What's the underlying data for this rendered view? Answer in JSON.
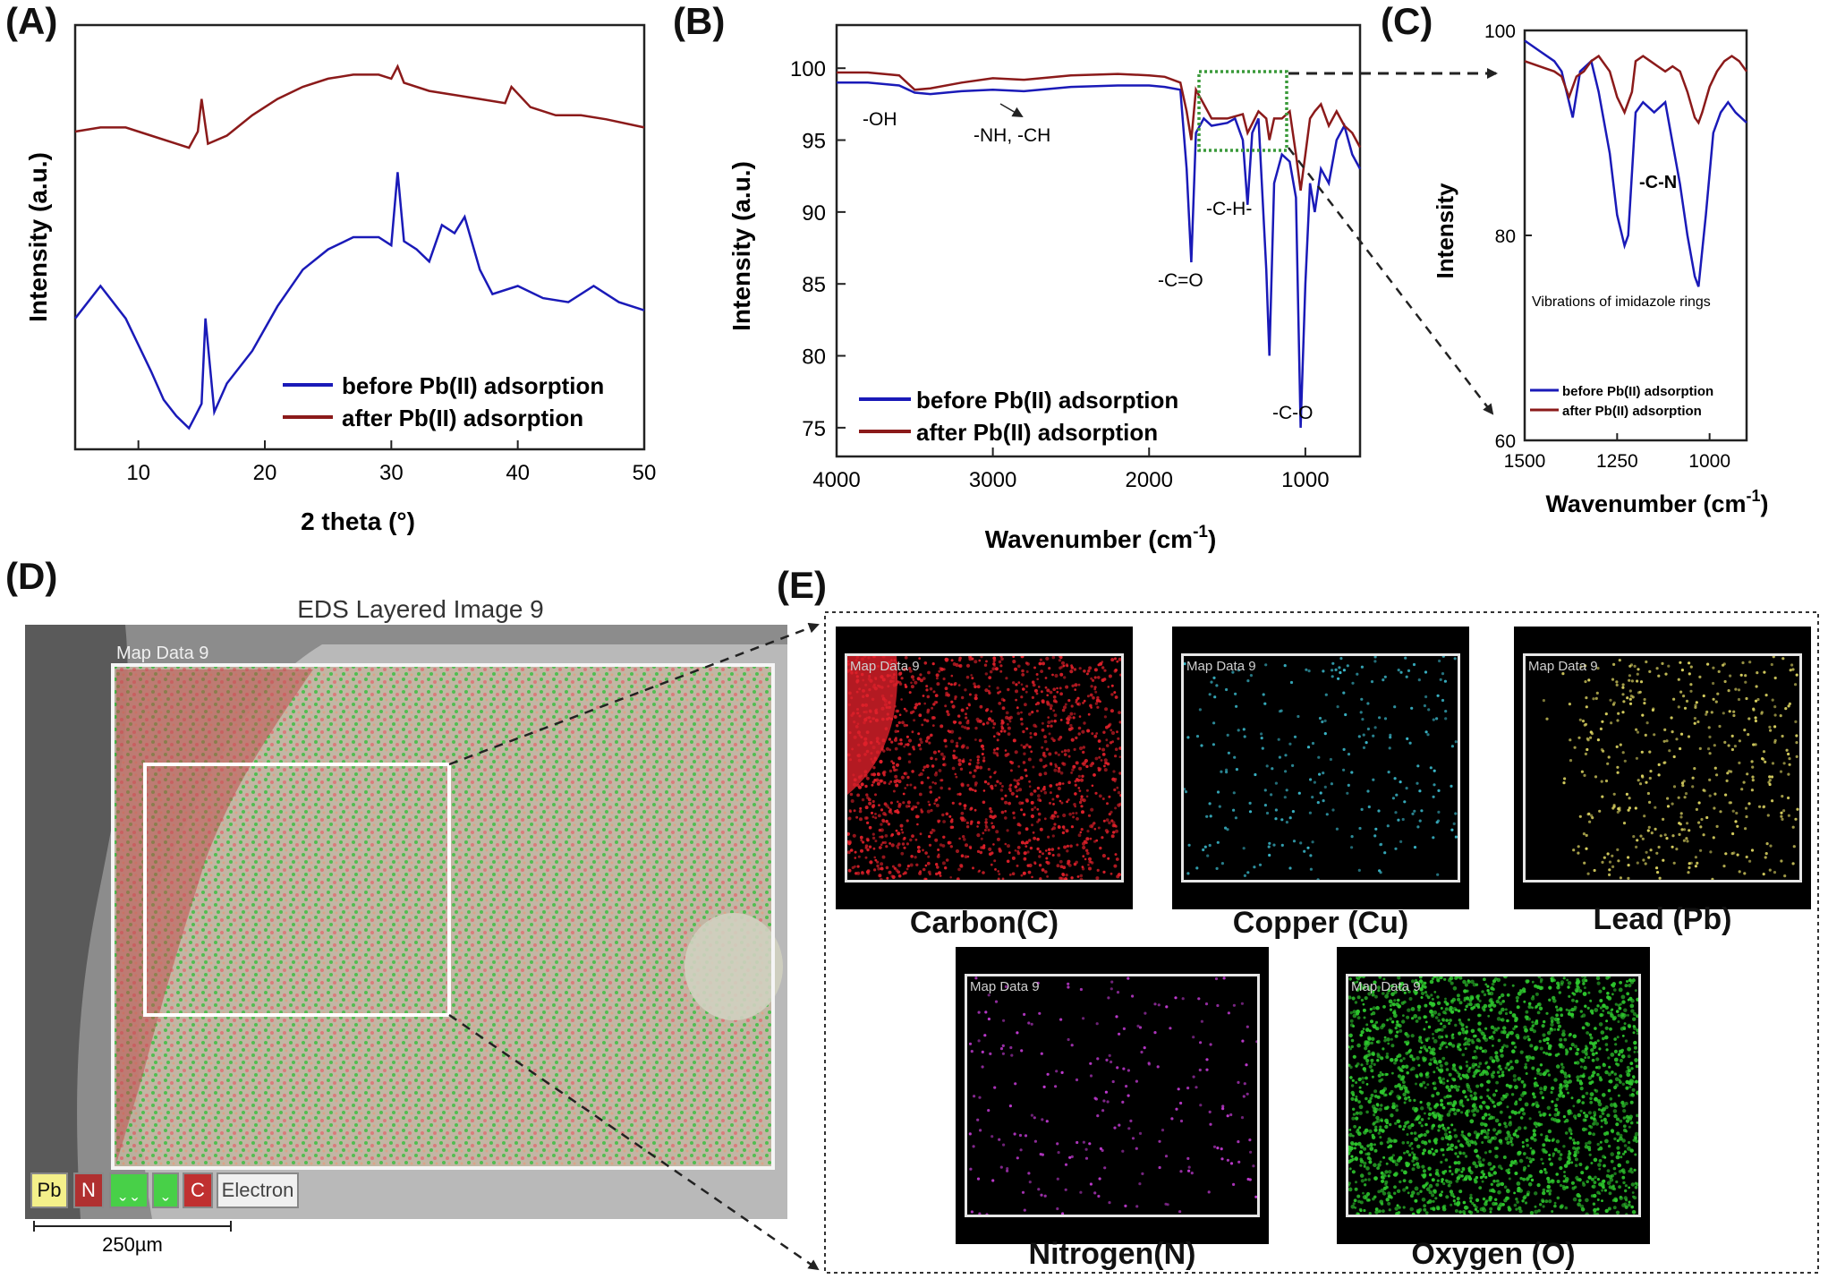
{
  "panels": {
    "a": "(A)",
    "b": "(B)",
    "c": "(C)",
    "d": "(D)",
    "e": "(E)"
  },
  "colors": {
    "before": "#1a1ab8",
    "after": "#8b1a1a",
    "highlight": "#3a9a3a"
  },
  "chart_data": [
    {
      "panel": "A",
      "type": "line",
      "xlabel": "2 theta (°)",
      "ylabel": "Intensity (a.u.)",
      "xlim": [
        5,
        50
      ],
      "xticks": [
        10,
        20,
        30,
        40,
        50
      ],
      "yticks_shown": false,
      "legend_position": "bottom-right",
      "series": [
        {
          "name": "before Pb(II) adsorption",
          "color": "#1a1ab8",
          "x": [
            5,
            7,
            9,
            11,
            12,
            13,
            14,
            14.5,
            15,
            15.3,
            16,
            17,
            19,
            21,
            23,
            25,
            27,
            29,
            30,
            30.5,
            31,
            32,
            33,
            34,
            35,
            35.8,
            37,
            38,
            40,
            42,
            44,
            46,
            48,
            50
          ],
          "y": [
            0.3,
            0.38,
            0.3,
            0.17,
            0.1,
            0.06,
            0.03,
            0.06,
            0.09,
            0.3,
            0.07,
            0.14,
            0.22,
            0.33,
            0.42,
            0.47,
            0.5,
            0.5,
            0.48,
            0.66,
            0.49,
            0.47,
            0.44,
            0.53,
            0.51,
            0.55,
            0.42,
            0.36,
            0.38,
            0.35,
            0.34,
            0.38,
            0.34,
            0.32
          ]
        },
        {
          "name": "after Pb(II) adsorption",
          "color": "#8b1a1a",
          "x": [
            5,
            7,
            9,
            11,
            13,
            14,
            14.7,
            15,
            15.5,
            17,
            19,
            21,
            23,
            25,
            27,
            29,
            30,
            30.5,
            31,
            33,
            35,
            37,
            39,
            39.5,
            41,
            43,
            45,
            47,
            50
          ],
          "y": [
            0.76,
            0.77,
            0.77,
            0.75,
            0.73,
            0.72,
            0.76,
            0.84,
            0.73,
            0.75,
            0.8,
            0.84,
            0.87,
            0.89,
            0.9,
            0.9,
            0.89,
            0.92,
            0.88,
            0.86,
            0.85,
            0.84,
            0.83,
            0.87,
            0.82,
            0.8,
            0.8,
            0.79,
            0.77
          ]
        }
      ]
    },
    {
      "panel": "B",
      "type": "line",
      "xlabel": "Wavenumber (cm-1)",
      "ylabel": "Intensity (a.u.)",
      "xlim": [
        4000,
        650
      ],
      "ylim": [
        73,
        103
      ],
      "xticks": [
        4000,
        3000,
        2000,
        1000
      ],
      "yticks": [
        75,
        80,
        85,
        90,
        95,
        100
      ],
      "legend_position": "bottom-left",
      "annotations": [
        "-OH",
        "-NH, -CH",
        "-C=O",
        "-C-H-",
        "-C-O"
      ],
      "series": [
        {
          "name": "before Pb(II) adsorption",
          "color": "#1a1ab8",
          "x": [
            4000,
            3800,
            3600,
            3500,
            3400,
            3200,
            3000,
            2800,
            2500,
            2200,
            2000,
            1900,
            1800,
            1760,
            1730,
            1700,
            1650,
            1600,
            1500,
            1450,
            1400,
            1370,
            1340,
            1300,
            1250,
            1230,
            1200,
            1150,
            1100,
            1060,
            1030,
            1000,
            970,
            940,
            900,
            850,
            800,
            750,
            700,
            650
          ],
          "y": [
            99,
            99,
            98.8,
            98.3,
            98.2,
            98.4,
            98.5,
            98.4,
            98.7,
            98.8,
            98.8,
            98.7,
            98.5,
            93,
            86.5,
            95.5,
            96.5,
            96,
            96.2,
            96.5,
            95,
            90.5,
            95.5,
            96.5,
            86,
            80,
            92,
            94,
            93.5,
            91,
            75,
            85,
            92,
            90,
            93,
            92,
            95,
            96,
            94,
            93
          ]
        },
        {
          "name": "after Pb(II) adsorption",
          "color": "#8b1a1a",
          "x": [
            4000,
            3800,
            3600,
            3500,
            3400,
            3200,
            3000,
            2800,
            2500,
            2200,
            2000,
            1900,
            1800,
            1760,
            1730,
            1700,
            1650,
            1600,
            1500,
            1400,
            1370,
            1300,
            1250,
            1230,
            1200,
            1150,
            1100,
            1060,
            1030,
            1000,
            970,
            940,
            900,
            850,
            800,
            750,
            700,
            650
          ],
          "y": [
            99.7,
            99.7,
            99.5,
            98.5,
            98.6,
            99,
            99.3,
            99.2,
            99.5,
            99.6,
            99.5,
            99.4,
            99,
            97,
            95,
            98.5,
            97.5,
            96.5,
            96.5,
            96.8,
            95.5,
            97,
            96.5,
            95,
            96.5,
            96.5,
            97,
            94,
            91.5,
            94,
            96.5,
            97,
            97.5,
            96,
            97,
            96,
            95.5,
            94.5
          ]
        }
      ]
    },
    {
      "panel": "C",
      "type": "line",
      "xlabel": "Wavenumber (cm-1)",
      "ylabel": "Intensity",
      "xlim": [
        1500,
        900
      ],
      "ylim": [
        60,
        100
      ],
      "xticks": [
        1500,
        1250,
        1000
      ],
      "yticks": [
        60,
        80,
        100
      ],
      "legend_position": "bottom-left",
      "annotations": [
        "-C-N",
        "Vibrations of imidazole rings"
      ],
      "series": [
        {
          "name": "before Pb(II) adsorption",
          "color": "#1a1ab8",
          "x": [
            1500,
            1460,
            1420,
            1400,
            1380,
            1370,
            1350,
            1320,
            1300,
            1270,
            1250,
            1230,
            1220,
            1200,
            1180,
            1150,
            1120,
            1100,
            1080,
            1060,
            1040,
            1030,
            1010,
            990,
            970,
            950,
            930,
            900
          ],
          "y": [
            99,
            98,
            97,
            96,
            93,
            91.5,
            96,
            97,
            94,
            88,
            82,
            79,
            80,
            92,
            93,
            92,
            93,
            89,
            85,
            80,
            76,
            75,
            82,
            90,
            92,
            93,
            92,
            91
          ]
        },
        {
          "name": "after Pb(II) adsorption",
          "color": "#8b1a1a",
          "x": [
            1500,
            1460,
            1420,
            1400,
            1380,
            1360,
            1340,
            1320,
            1300,
            1270,
            1250,
            1230,
            1210,
            1200,
            1180,
            1160,
            1140,
            1120,
            1100,
            1080,
            1060,
            1040,
            1030,
            1020,
            1000,
            980,
            960,
            940,
            920,
            900
          ],
          "y": [
            97,
            96.5,
            96,
            95.5,
            93.5,
            95.5,
            96,
            97,
            97.5,
            96,
            93.5,
            92,
            94,
            97,
            97.5,
            97,
            96.5,
            96,
            96.5,
            96,
            94,
            91.5,
            91,
            92,
            94.5,
            96,
            97,
            97.5,
            97,
            96
          ]
        }
      ]
    }
  ],
  "eds": {
    "title": "EDS Layered Image 9",
    "map_label": "Map Data 9",
    "legend": [
      "Pb",
      "N",
      "ˬ ˬ",
      "ˬ",
      "C",
      "Electron"
    ],
    "scale": "250µm"
  },
  "maps": {
    "tag": "Map Data 9",
    "carbon": {
      "label": "Carbon(C)",
      "color": "#e0202a"
    },
    "copper": {
      "label": "Copper (Cu)",
      "color": "#3ab7c9"
    },
    "lead": {
      "label": "Lead (Pb)",
      "color": "#d8d060"
    },
    "nitrogen": {
      "label": "Nitrogen(N)",
      "color": "#c03ad0"
    },
    "oxygen": {
      "label": "Oxygen (O)",
      "color": "#2ec82e"
    }
  }
}
